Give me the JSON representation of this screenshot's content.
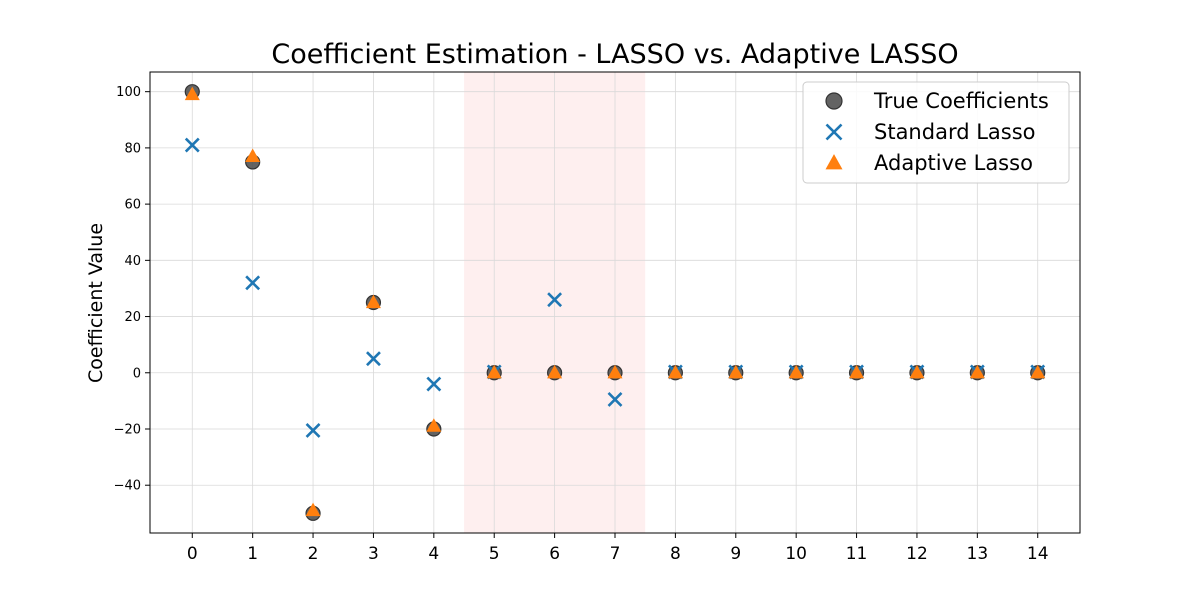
{
  "chart_data": {
    "type": "scatter",
    "title": "Coefficient Estimation - LASSO vs. Adaptive LASSO",
    "xlabel": "",
    "ylabel": "Coefficient Value",
    "x": [
      0,
      1,
      2,
      3,
      4,
      5,
      6,
      7,
      8,
      9,
      10,
      11,
      12,
      13,
      14
    ],
    "xlim": [
      -0.7,
      14.7
    ],
    "ylim": [
      -57,
      107
    ],
    "yticks": [
      -40,
      -20,
      0,
      20,
      40,
      60,
      80,
      100
    ],
    "grid": true,
    "legend_position": "top-right",
    "highlight_region": {
      "x_start": 4.5,
      "x_end": 7.5,
      "color": "#fde8e8"
    },
    "series": [
      {
        "name": "True Coefficients",
        "marker": "circle",
        "color": "#4d4d4d",
        "values": [
          100,
          75,
          -50,
          25,
          -20,
          0,
          0,
          0,
          0,
          0,
          0,
          0,
          0,
          0,
          0
        ]
      },
      {
        "name": "Standard Lasso",
        "marker": "x",
        "color": "#1f77b4",
        "values": [
          81,
          32,
          -20.5,
          5,
          -4,
          0.3,
          26,
          -9.5,
          0.3,
          0.3,
          0.3,
          0.3,
          0.3,
          0.3,
          0.3
        ]
      },
      {
        "name": "Adaptive Lasso",
        "marker": "triangle",
        "color": "#ff7f0e",
        "values": [
          99,
          77,
          -49,
          25,
          -19,
          0,
          0,
          0,
          0,
          0,
          0,
          0,
          0,
          0,
          0
        ]
      }
    ]
  }
}
